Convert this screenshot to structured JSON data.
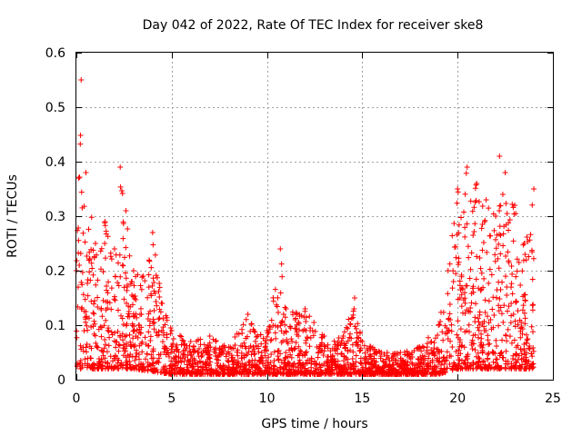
{
  "chart_data": {
    "type": "scatter",
    "title": "Day 042 of 2022, Rate Of TEC Index for receiver ske8",
    "xlabel": "GPS time / hours",
    "ylabel": "ROTI / TECUs",
    "xlim": [
      0,
      25
    ],
    "ylim": [
      0,
      0.6
    ],
    "xticks": [
      0,
      5,
      10,
      15,
      20,
      25
    ],
    "yticks": [
      0,
      0.1,
      0.2,
      0.3,
      0.4,
      0.5,
      0.6
    ],
    "xtick_labels": [
      "0",
      "5",
      "10",
      "15",
      "20",
      "25"
    ],
    "ytick_labels": [
      "0",
      "0.1",
      "0.2",
      "0.3",
      "0.4",
      "0.5",
      "0.6"
    ],
    "grid": true,
    "marker": "+",
    "color": "#ff0000",
    "series": [
      {
        "name": "ROTI",
        "envelope": [
          {
            "x": 0.0,
            "y": 0.2
          },
          {
            "x": 0.25,
            "y": 0.55
          },
          {
            "x": 0.5,
            "y": 0.38
          },
          {
            "x": 1.0,
            "y": 0.25
          },
          {
            "x": 1.5,
            "y": 0.29
          },
          {
            "x": 2.0,
            "y": 0.24
          },
          {
            "x": 2.3,
            "y": 0.39
          },
          {
            "x": 2.6,
            "y": 0.31
          },
          {
            "x": 3.0,
            "y": 0.2
          },
          {
            "x": 3.5,
            "y": 0.19
          },
          {
            "x": 4.0,
            "y": 0.27
          },
          {
            "x": 4.5,
            "y": 0.14
          },
          {
            "x": 5.0,
            "y": 0.09
          },
          {
            "x": 6.0,
            "y": 0.07
          },
          {
            "x": 7.0,
            "y": 0.08
          },
          {
            "x": 8.0,
            "y": 0.06
          },
          {
            "x": 9.0,
            "y": 0.12
          },
          {
            "x": 9.5,
            "y": 0.08
          },
          {
            "x": 10.0,
            "y": 0.09
          },
          {
            "x": 10.7,
            "y": 0.24
          },
          {
            "x": 11.0,
            "y": 0.13
          },
          {
            "x": 12.0,
            "y": 0.13
          },
          {
            "x": 13.0,
            "y": 0.08
          },
          {
            "x": 14.0,
            "y": 0.08
          },
          {
            "x": 14.6,
            "y": 0.15
          },
          {
            "x": 15.0,
            "y": 0.07
          },
          {
            "x": 16.0,
            "y": 0.05
          },
          {
            "x": 17.0,
            "y": 0.05
          },
          {
            "x": 18.0,
            "y": 0.06
          },
          {
            "x": 19.0,
            "y": 0.1
          },
          {
            "x": 19.5,
            "y": 0.2
          },
          {
            "x": 20.0,
            "y": 0.35
          },
          {
            "x": 20.5,
            "y": 0.39
          },
          {
            "x": 21.0,
            "y": 0.36
          },
          {
            "x": 21.5,
            "y": 0.33
          },
          {
            "x": 22.0,
            "y": 0.3
          },
          {
            "x": 22.2,
            "y": 0.41
          },
          {
            "x": 22.5,
            "y": 0.38
          },
          {
            "x": 23.0,
            "y": 0.32
          },
          {
            "x": 23.5,
            "y": 0.25
          },
          {
            "x": 24.0,
            "y": 0.35
          }
        ],
        "baseline": [
          {
            "x": 0.0,
            "y": 0.02
          },
          {
            "x": 3.0,
            "y": 0.02
          },
          {
            "x": 5.0,
            "y": 0.01
          },
          {
            "x": 19.0,
            "y": 0.01
          },
          {
            "x": 20.0,
            "y": 0.02
          },
          {
            "x": 24.0,
            "y": 0.02
          }
        ]
      }
    ]
  }
}
